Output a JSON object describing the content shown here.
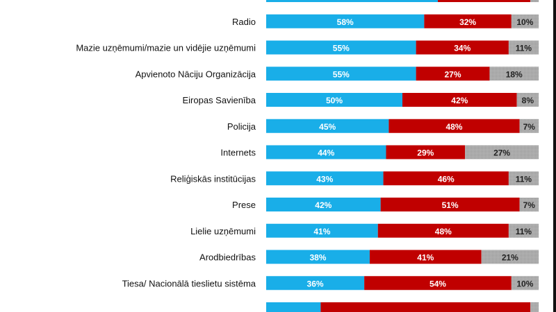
{
  "chart_data": {
    "type": "bar",
    "orientation": "horizontal",
    "stacked": true,
    "title": "",
    "xlabel": "",
    "ylabel": "",
    "xlim": [
      0,
      100
    ],
    "categories": [
      "",
      "Radio",
      "Mazie uzņēmumi/mazie  un vidējie uzņēmumi",
      "Apvienoto Nāciju Organizācija",
      "Eiropas Savienība",
      "Policija",
      "Internets",
      "Reliģiskās institūcijas",
      "Prese",
      "Lielie uzņēmumi",
      "Arodbiedrības",
      "Tiesa/ Nacionālā tieslietu sistēma",
      ""
    ],
    "series": [
      {
        "name": "blue",
        "color": "#19aee8",
        "values": [
          63,
          58,
          55,
          55,
          50,
          45,
          44,
          43,
          42,
          41,
          38,
          36,
          20
        ]
      },
      {
        "name": "red",
        "color": "#c00000",
        "values": [
          34,
          32,
          34,
          27,
          42,
          48,
          29,
          46,
          51,
          48,
          41,
          54,
          77
        ]
      },
      {
        "name": "gray",
        "color": "#a9a9a9",
        "values": [
          3,
          10,
          11,
          18,
          8,
          7,
          27,
          11,
          7,
          11,
          21,
          10,
          3
        ]
      }
    ],
    "data_labels_visible": [
      false,
      true,
      true,
      true,
      true,
      true,
      true,
      true,
      true,
      true,
      true,
      true,
      false
    ],
    "grid": false,
    "legend": "none"
  }
}
